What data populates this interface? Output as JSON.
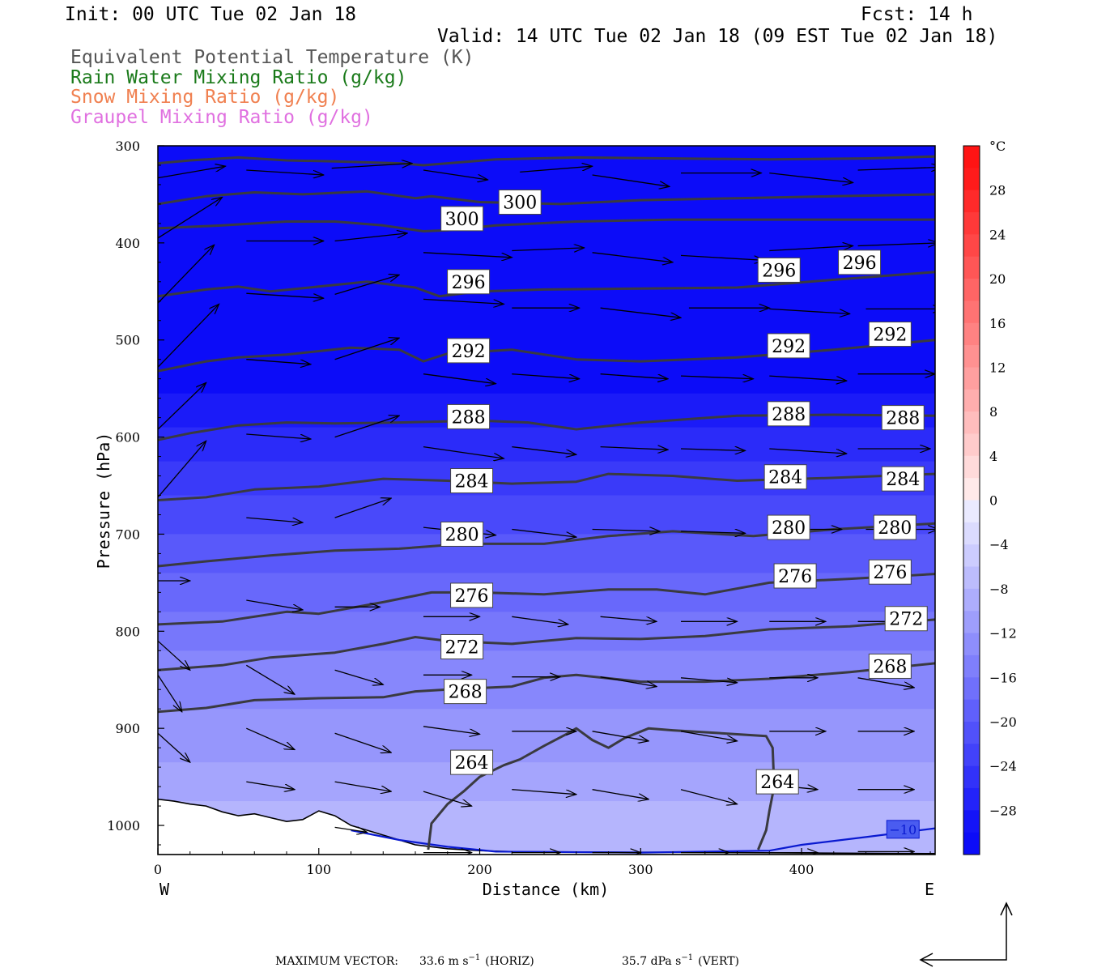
{
  "header": {
    "init": "Init: 00 UTC Tue 02 Jan 18",
    "fcst": "Fcst:   14 h",
    "valid": "Valid: 14 UTC Tue 02 Jan 18 (09 EST Tue 02 Jan 18)",
    "fields": [
      {
        "text": "Equivalent Potential Temperature (K)",
        "color": "#555555"
      },
      {
        "text": "Rain Water Mixing Ratio (g/kg)",
        "color": "#1a7a1a"
      },
      {
        "text": "Snow Mixing Ratio (g/kg)",
        "color": "#f08050"
      },
      {
        "text": "Graupel Mixing Ratio (g/kg)",
        "color": "#e070e0"
      }
    ]
  },
  "chart_data": {
    "type": "heatmap",
    "xlabel": "Distance (km)",
    "ylabel": "Pressure (hPa)",
    "x_ticks": [
      0,
      100,
      200,
      300,
      400
    ],
    "y_ticks": [
      300,
      400,
      500,
      600,
      700,
      800,
      900,
      1000
    ],
    "xlim": [
      0,
      483
    ],
    "ylim": [
      1030,
      300
    ],
    "left_label": "W",
    "right_label": "E",
    "theta_e_levels": [
      264,
      268,
      272,
      276,
      280,
      284,
      288,
      292,
      296,
      300
    ],
    "theta_e_labels": [
      {
        "v": "300",
        "x": 189,
        "p": 375
      },
      {
        "v": "300",
        "x": 225,
        "p": 358
      },
      {
        "v": "296",
        "x": 193,
        "p": 440
      },
      {
        "v": "296",
        "x": 386,
        "p": 428
      },
      {
        "v": "296",
        "x": 436,
        "p": 420
      },
      {
        "v": "292",
        "x": 193,
        "p": 511
      },
      {
        "v": "292",
        "x": 392,
        "p": 506
      },
      {
        "v": "292",
        "x": 455,
        "p": 494
      },
      {
        "v": "288",
        "x": 193,
        "p": 579
      },
      {
        "v": "288",
        "x": 392,
        "p": 576
      },
      {
        "v": "288",
        "x": 463,
        "p": 580
      },
      {
        "v": "284",
        "x": 195,
        "p": 645
      },
      {
        "v": "284",
        "x": 390,
        "p": 641
      },
      {
        "v": "284",
        "x": 463,
        "p": 643
      },
      {
        "v": "280",
        "x": 189,
        "p": 700
      },
      {
        "v": "280",
        "x": 392,
        "p": 693
      },
      {
        "v": "280",
        "x": 458,
        "p": 693
      },
      {
        "v": "276",
        "x": 195,
        "p": 763
      },
      {
        "v": "276",
        "x": 396,
        "p": 743
      },
      {
        "v": "276",
        "x": 455,
        "p": 739
      },
      {
        "v": "272",
        "x": 189,
        "p": 816
      },
      {
        "v": "272",
        "x": 465,
        "p": 787
      },
      {
        "v": "268",
        "x": 191,
        "p": 862
      },
      {
        "v": "268",
        "x": 455,
        "p": 836
      },
      {
        "v": "264",
        "x": 195,
        "p": 935
      },
      {
        "v": "264",
        "x": 385,
        "p": 955
      }
    ],
    "temp_contour_label": "−10",
    "colorbar": {
      "unit": "°C",
      "labels": [
        "28",
        "24",
        "20",
        "16",
        "12",
        "8",
        "4",
        "0",
        "−4",
        "−8",
        "−12",
        "−16",
        "−20",
        "−24",
        "−28"
      ],
      "min": -32,
      "max": 32,
      "step": 2
    },
    "footer": {
      "prefix": "MAXIMUM VECTOR:",
      "horiz_value": "33.6 m s",
      "horiz_unit": "(HORIZ)",
      "vert_value": "35.7 dPa s",
      "vert_unit": "(VERT)",
      "exponent": "−1"
    }
  }
}
